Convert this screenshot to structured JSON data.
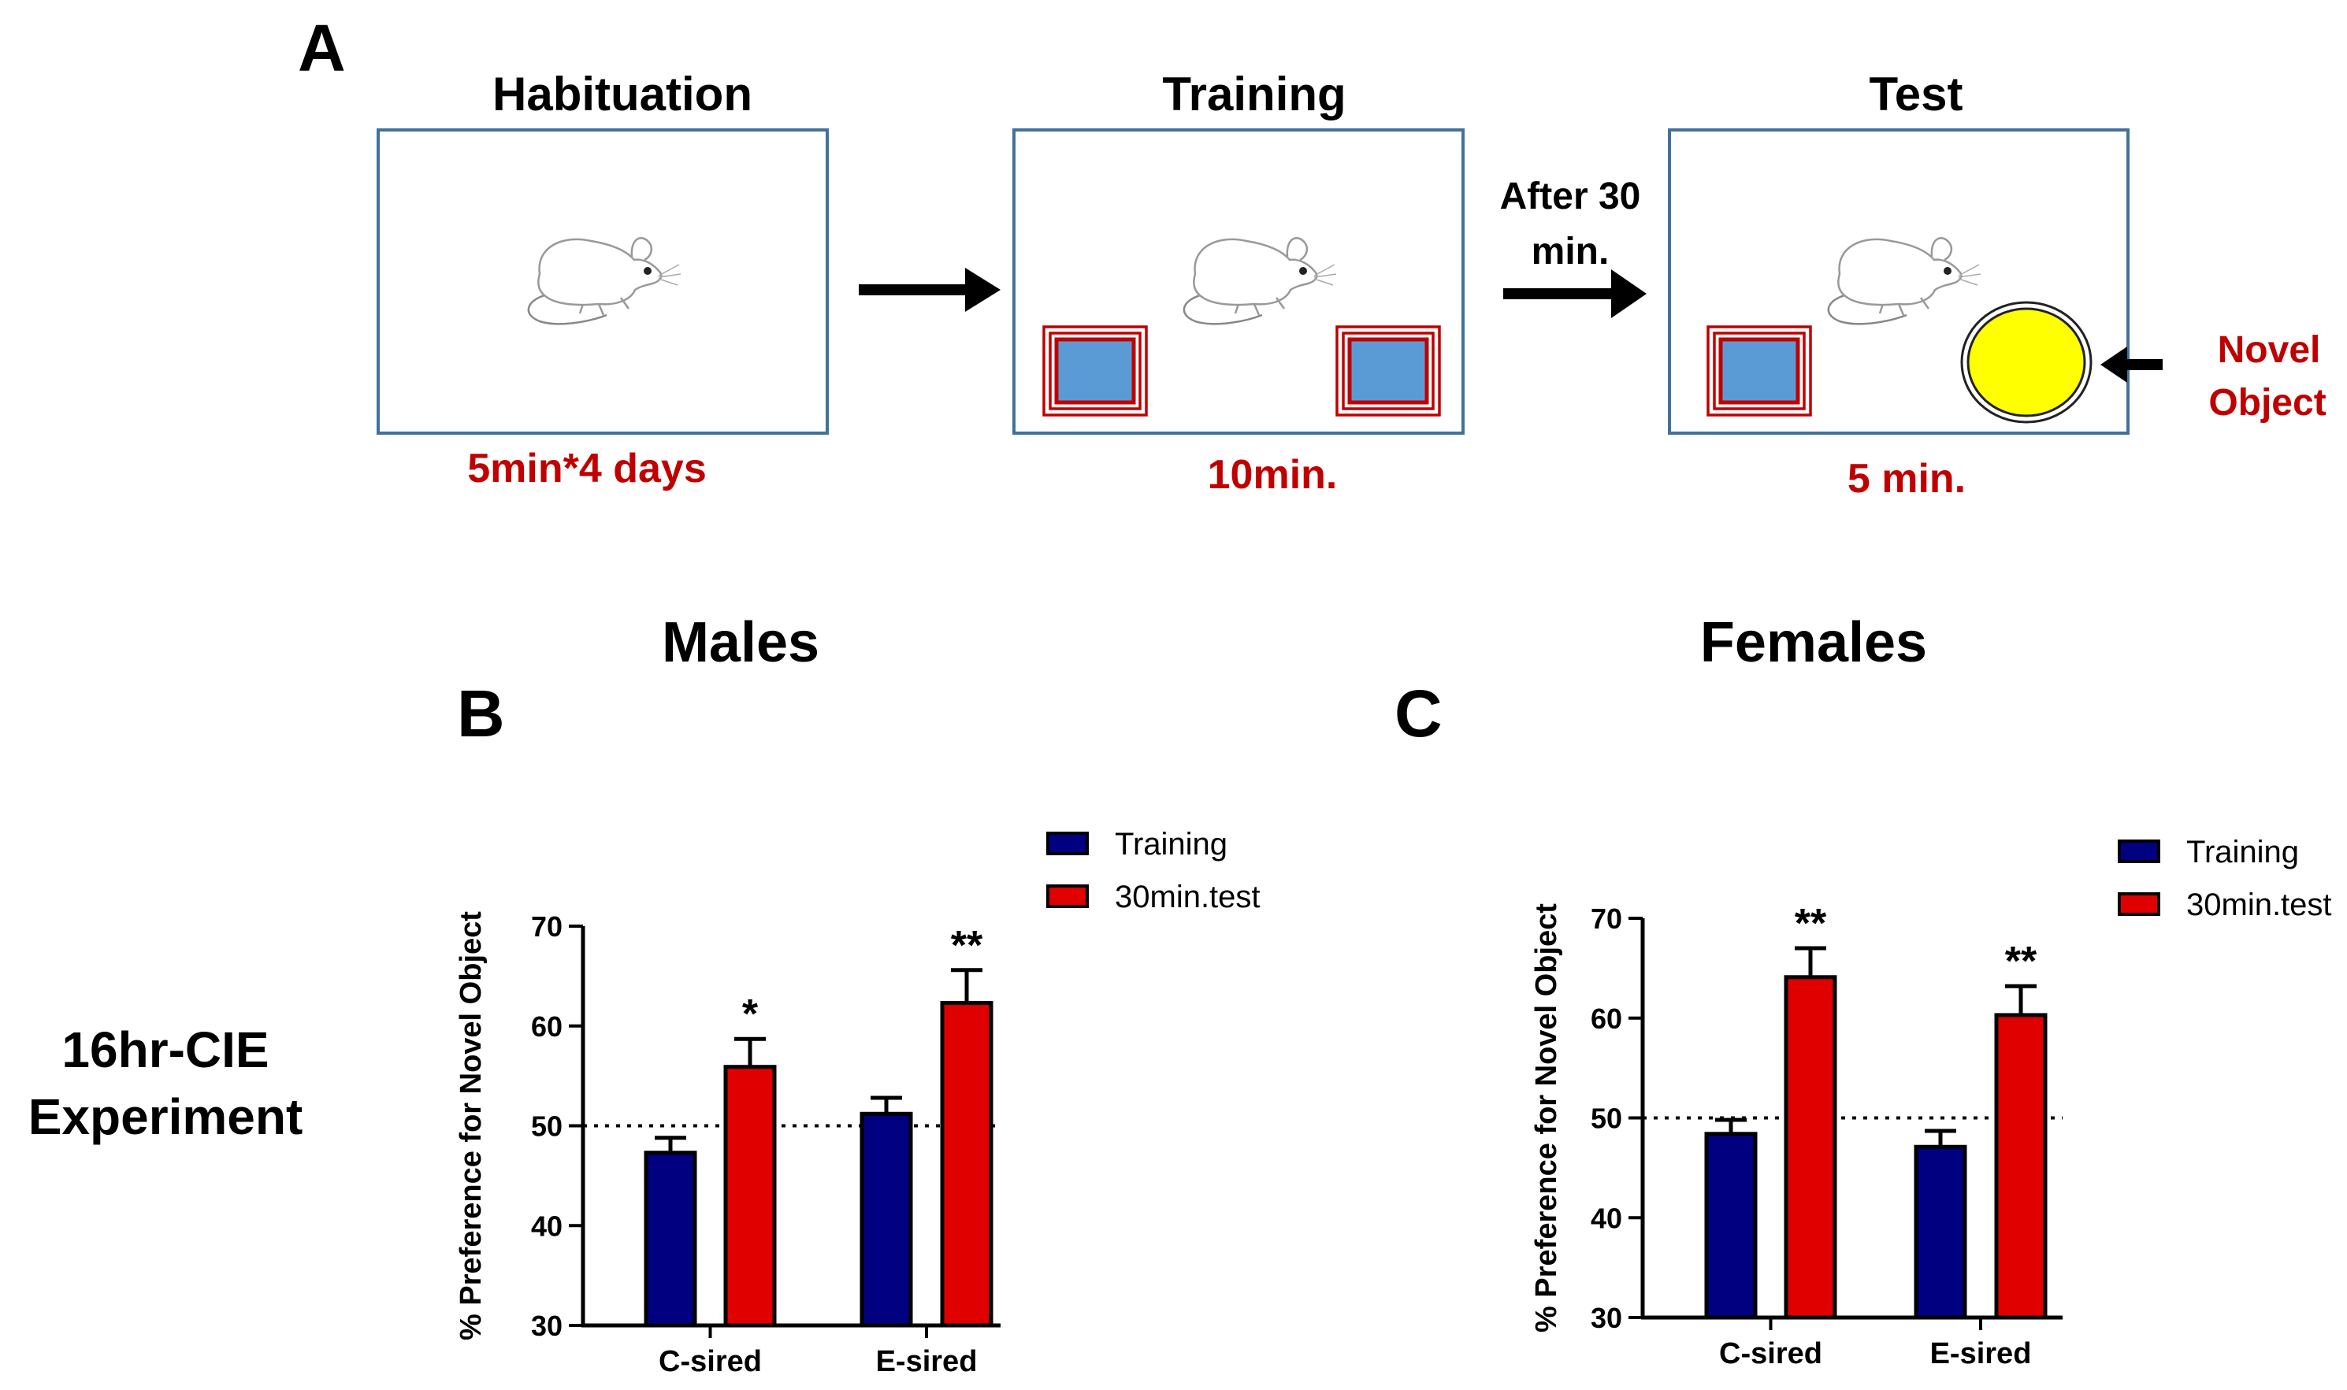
{
  "panel_a": {
    "letter": "A",
    "stages": [
      {
        "title": "Habituation",
        "duration": "5min*4 days"
      },
      {
        "title": "Training",
        "duration": "10min."
      },
      {
        "title": "Test",
        "duration": "5 min."
      }
    ],
    "delay_line1": "After 30",
    "delay_line2": "min.",
    "novel_line1": "Novel",
    "novel_line2": "Object",
    "colors": {
      "box_border": "#41719C",
      "object_fill": "#5B9BD5",
      "object_border": "#C00000",
      "novel_fill": "#FFFF00",
      "label_red": "#C00000"
    }
  },
  "experiment_label_line1": "16hr-CIE",
  "experiment_label_line2": "Experiment",
  "chart_data": [
    {
      "panel": "B",
      "type": "bar",
      "title": "Males",
      "ylabel": "% Preference for Novel Object",
      "xlabel": "",
      "ylim": [
        30,
        70
      ],
      "yticks": [
        30,
        40,
        50,
        60,
        70
      ],
      "reference_line": 50,
      "categories": [
        "C-sired",
        "E-sired"
      ],
      "series": [
        {
          "name": "Training",
          "color": "#000080",
          "values": [
            47.3,
            51.2
          ],
          "errors": [
            1.5,
            1.6
          ],
          "significance": [
            "",
            ""
          ]
        },
        {
          "name": "30min.test",
          "color": "#E00000",
          "values": [
            55.9,
            62.3
          ],
          "errors": [
            2.8,
            3.3
          ],
          "significance": [
            "*",
            "**"
          ]
        }
      ],
      "legend": [
        {
          "label": "Training",
          "color": "#000080"
        },
        {
          "label": "30min.test",
          "color": "#E00000"
        }
      ]
    },
    {
      "panel": "C",
      "type": "bar",
      "title": "Females",
      "ylabel": "% Preference for Novel Object",
      "xlabel": "",
      "ylim": [
        30,
        70
      ],
      "yticks": [
        30,
        40,
        50,
        60,
        70
      ],
      "reference_line": 50,
      "categories": [
        "C-sired",
        "E-sired"
      ],
      "series": [
        {
          "name": "Training",
          "color": "#000080",
          "values": [
            48.4,
            47.1
          ],
          "errors": [
            1.4,
            1.6
          ],
          "significance": [
            "",
            ""
          ]
        },
        {
          "name": "30min.test",
          "color": "#E00000",
          "values": [
            64.1,
            60.3
          ],
          "errors": [
            2.9,
            2.9
          ],
          "significance": [
            "**",
            "**"
          ]
        }
      ],
      "legend": [
        {
          "label": "Training",
          "color": "#000080"
        },
        {
          "label": "30min.test",
          "color": "#E00000"
        }
      ]
    }
  ]
}
